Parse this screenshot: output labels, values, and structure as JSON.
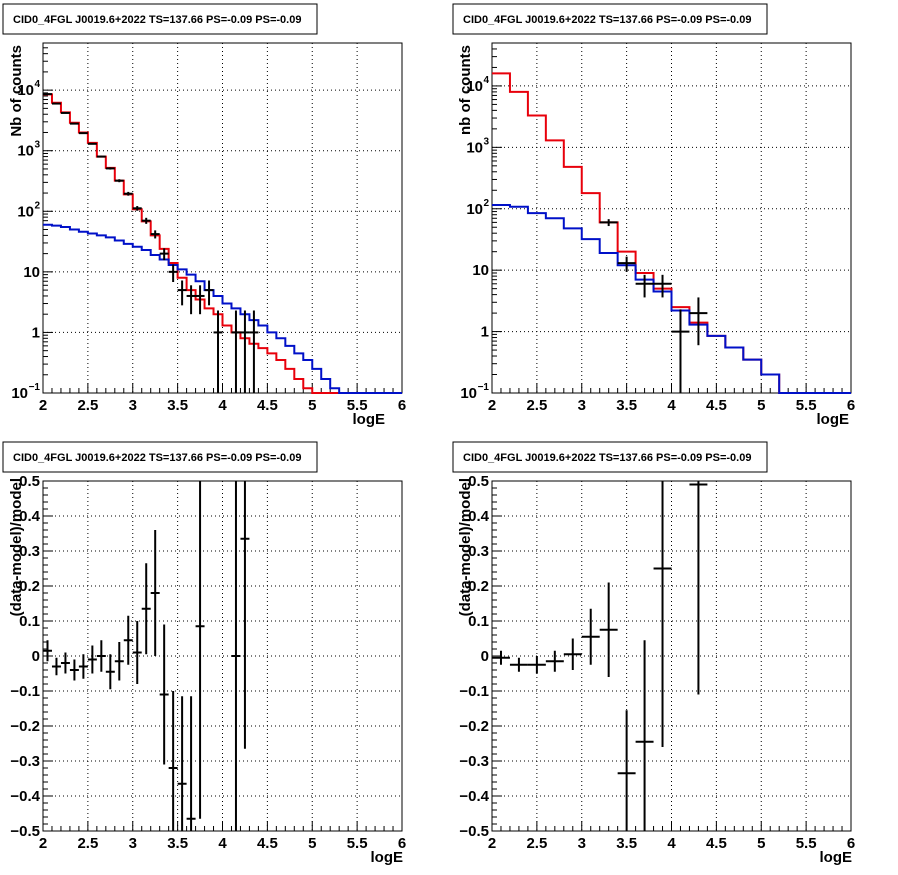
{
  "colors": {
    "data": "#000000",
    "total_model": "#e8000b",
    "component_model": "#0010c8",
    "grid": "#000000"
  },
  "chart_data": [
    {
      "type": "line",
      "title": "CID0_4FGL J0019.6+2022 TS=137.66 PS=-0.09 PS=-0.09",
      "xlabel": "logE",
      "ylabel": "Nb of counts",
      "xlim": [
        2,
        6
      ],
      "ylim": [
        0.1,
        60000
      ],
      "yscale": "log",
      "grid": true,
      "xticks": [
        "2",
        "2.5",
        "3",
        "3.5",
        "4",
        "4.5",
        "5",
        "5.5",
        "6"
      ],
      "yticks": [
        {
          "value": 0.1,
          "label": "10",
          "sup": "−1"
        },
        {
          "value": 1,
          "label": "1",
          "sup": ""
        },
        {
          "value": 10,
          "label": "10",
          "sup": ""
        },
        {
          "value": 100,
          "label": "10",
          "sup": "2"
        },
        {
          "value": 1000,
          "label": "10",
          "sup": "3"
        },
        {
          "value": 10000,
          "label": "10",
          "sup": "4"
        }
      ],
      "bin_edges": [
        2.0,
        2.1,
        2.2,
        2.3,
        2.4,
        2.5,
        2.6,
        2.7,
        2.8,
        2.9,
        3.0,
        3.1,
        3.2,
        3.3,
        3.4,
        3.5,
        3.6,
        3.7,
        3.8,
        3.9,
        4.0,
        4.1,
        4.2,
        4.3,
        4.4,
        4.5,
        4.6,
        4.7,
        4.8,
        4.9,
        5.0,
        5.1,
        5.2,
        5.3,
        5.4,
        5.5,
        5.6,
        5.7,
        5.8,
        5.9,
        6.0
      ],
      "series": [
        {
          "values": [
            8500,
            6200,
            4300,
            2900,
            2000,
            1350,
            800,
            520,
            320,
            190,
            108,
            68,
            40,
            24,
            14,
            8,
            5,
            3.5,
            2.5,
            2,
            1.3,
            1,
            0.8,
            0.65,
            0.55,
            0.45,
            0.35,
            0.25,
            0.17,
            0.12,
            0.1,
            0.1,
            0.1,
            0.1,
            0.1,
            0.1,
            0.1,
            0.1,
            0.1,
            0.1
          ]
        },
        {
          "values": [
            60,
            58,
            55,
            50,
            46,
            43,
            40,
            37,
            33,
            29,
            26,
            23,
            19,
            16,
            13,
            11,
            9,
            7,
            5,
            4,
            3,
            2.5,
            2,
            1.6,
            1.3,
            1,
            0.8,
            0.6,
            0.45,
            0.35,
            0.25,
            0.17,
            0.12,
            0.1,
            0.1,
            0.1,
            0.1,
            0.1,
            0.1,
            0.1
          ]
        }
      ],
      "points": {
        "x": [
          2.05,
          2.15,
          2.25,
          2.35,
          2.45,
          2.55,
          2.65,
          2.75,
          2.85,
          2.95,
          3.05,
          3.15,
          3.25,
          3.35,
          3.45,
          3.55,
          3.65,
          3.75,
          3.85,
          3.95,
          4.15,
          4.25,
          4.35
        ],
        "y": [
          8600,
          6000,
          4200,
          2800,
          1950,
          1300,
          800,
          510,
          320,
          195,
          112,
          70,
          42,
          20,
          10,
          5,
          4,
          4,
          5,
          1,
          1,
          1,
          1
        ],
        "err_low": [
          90,
          80,
          65,
          55,
          45,
          36,
          28,
          22,
          18,
          14,
          10,
          8,
          6.4,
          4.4,
          3.2,
          2.2,
          2,
          2,
          2.2,
          1,
          1,
          1,
          1
        ],
        "err_high": [
          90,
          80,
          65,
          55,
          45,
          36,
          28,
          22,
          18,
          14,
          10,
          8,
          6.4,
          4.4,
          3.2,
          2.2,
          2,
          2,
          2.2,
          1.3,
          1.3,
          1.3,
          1.3
        ]
      }
    },
    {
      "type": "line",
      "title": "CID0_4FGL J0019.6+2022 TS=137.66 PS=-0.09 PS=-0.09",
      "xlabel": "logE",
      "ylabel": "nb of counts",
      "xlim": [
        2,
        6
      ],
      "ylim": [
        0.1,
        50000
      ],
      "yscale": "log",
      "grid": true,
      "xticks": [
        "2",
        "2.5",
        "3",
        "3.5",
        "4",
        "4.5",
        "5",
        "5.5",
        "6"
      ],
      "yticks": [
        {
          "value": 0.1,
          "label": "10",
          "sup": "−1"
        },
        {
          "value": 1,
          "label": "1",
          "sup": ""
        },
        {
          "value": 10,
          "label": "10",
          "sup": ""
        },
        {
          "value": 100,
          "label": "10",
          "sup": "2"
        },
        {
          "value": 1000,
          "label": "10",
          "sup": "3"
        },
        {
          "value": 10000,
          "label": "10",
          "sup": "4"
        }
      ],
      "bin_edges": [
        2.0,
        2.2,
        2.4,
        2.6,
        2.8,
        3.0,
        3.2,
        3.4,
        3.6,
        3.8,
        4.0,
        4.2,
        4.4,
        4.6,
        4.8,
        5.0,
        5.2,
        5.4,
        5.6,
        5.8,
        6.0
      ],
      "series": [
        {
          "values": [
            16000,
            8000,
            3300,
            1300,
            480,
            180,
            60,
            20,
            9,
            5,
            2.5,
            1.4,
            0.85,
            0.55,
            0.35,
            0.2,
            0.1,
            0.1,
            0.1,
            0.1
          ]
        },
        {
          "values": [
            115,
            108,
            85,
            70,
            48,
            32,
            19,
            12,
            7,
            4.5,
            2.2,
            1.3,
            0.85,
            0.55,
            0.35,
            0.2,
            0.1,
            0.1,
            0.1,
            0.1
          ]
        }
      ],
      "points": {
        "x": [
          3.3,
          3.5,
          3.7,
          3.9,
          4.1,
          4.3
        ],
        "y": [
          60,
          13,
          6,
          6,
          1,
          2
        ],
        "err_low": [
          7.7,
          3.6,
          2.4,
          2.4,
          1,
          1.4
        ],
        "err_high": [
          7.7,
          3.6,
          2.4,
          2.4,
          1.3,
          1.6
        ]
      }
    },
    {
      "type": "scatter",
      "title": "CID0_4FGL J0019.6+2022 TS=137.66 PS=-0.09 PS=-0.09",
      "xlabel": "logE",
      "ylabel": "(data-model)/model",
      "xlim": [
        2,
        6
      ],
      "ylim": [
        -0.5,
        0.5
      ],
      "grid": true,
      "xticks": [
        "2",
        "2.5",
        "3",
        "3.5",
        "4",
        "4.5",
        "5",
        "5.5",
        "6"
      ],
      "yticks": [
        {
          "value": -0.5,
          "label": "−0.5"
        },
        {
          "value": -0.4,
          "label": "−0.4"
        },
        {
          "value": -0.3,
          "label": "−0.3"
        },
        {
          "value": -0.2,
          "label": "−0.2"
        },
        {
          "value": -0.1,
          "label": "−0.1"
        },
        {
          "value": 0,
          "label": "0"
        },
        {
          "value": 0.1,
          "label": "0.1"
        },
        {
          "value": 0.2,
          "label": "0.2"
        },
        {
          "value": 0.3,
          "label": "0.3"
        },
        {
          "value": 0.4,
          "label": "0.4"
        },
        {
          "value": 0.5,
          "label": "0.5"
        }
      ],
      "points": {
        "x": [
          2.05,
          2.15,
          2.25,
          2.35,
          2.45,
          2.55,
          2.65,
          2.75,
          2.85,
          2.95,
          3.05,
          3.15,
          3.25,
          3.35,
          3.45,
          3.55,
          3.65,
          3.75,
          4.15,
          4.25
        ],
        "y": [
          0.015,
          -0.03,
          -0.02,
          -0.04,
          -0.03,
          -0.01,
          0.0,
          -0.045,
          -0.015,
          0.045,
          0.01,
          0.135,
          0.18,
          -0.11,
          -0.32,
          -0.365,
          -0.465,
          0.085,
          0.0,
          0.335
        ],
        "err": [
          0.03,
          0.025,
          0.03,
          0.03,
          0.035,
          0.04,
          0.045,
          0.05,
          0.055,
          0.07,
          0.09,
          0.13,
          0.18,
          0.2,
          0.22,
          0.25,
          0.35,
          0.55,
          0.6,
          0.6
        ]
      }
    },
    {
      "type": "scatter",
      "title": "CID0_4FGL J0019.6+2022 TS=137.66 PS=-0.09 PS=-0.09",
      "xlabel": "logE",
      "ylabel": "(data-model)/model",
      "xlim": [
        2,
        6
      ],
      "ylim": [
        -0.5,
        0.5
      ],
      "grid": true,
      "xticks": [
        "2",
        "2.5",
        "3",
        "3.5",
        "4",
        "4.5",
        "5",
        "5.5",
        "6"
      ],
      "yticks": [
        {
          "value": -0.5,
          "label": "−0.5"
        },
        {
          "value": -0.4,
          "label": "−0.4"
        },
        {
          "value": -0.3,
          "label": "−0.3"
        },
        {
          "value": -0.2,
          "label": "−0.2"
        },
        {
          "value": -0.1,
          "label": "−0.1"
        },
        {
          "value": 0,
          "label": "0"
        },
        {
          "value": 0.1,
          "label": "0.1"
        },
        {
          "value": 0.2,
          "label": "0.2"
        },
        {
          "value": 0.3,
          "label": "0.3"
        },
        {
          "value": 0.4,
          "label": "0.4"
        },
        {
          "value": 0.5,
          "label": "0.5"
        }
      ],
      "points": {
        "x": [
          2.1,
          2.3,
          2.5,
          2.7,
          2.9,
          3.1,
          3.3,
          3.5,
          3.7,
          3.9,
          4.3
        ],
        "y": [
          -0.005,
          -0.025,
          -0.025,
          -0.015,
          0.005,
          0.055,
          0.075,
          -0.335,
          -0.245,
          0.25,
          0.49
        ],
        "err": [
          0.02,
          0.02,
          0.025,
          0.03,
          0.045,
          0.08,
          0.135,
          0.18,
          0.29,
          0.51,
          0.6
        ]
      }
    }
  ]
}
